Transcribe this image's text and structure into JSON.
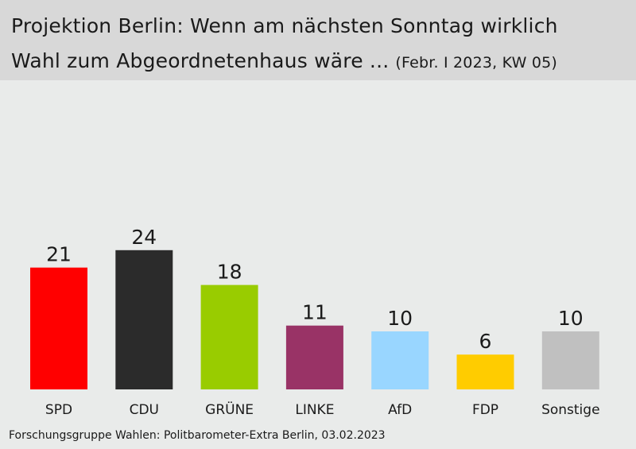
{
  "header": {
    "title_line1": "Projektion Berlin: Wenn am nächsten Sonntag wirklich",
    "title_line2": "Wahl zum Abgeordnetenhaus wäre ...",
    "subtitle": "(Febr. I 2023, KW 05)"
  },
  "source": "Forschungsgruppe Wahlen: Politbarometer-Extra Berlin, 03.02.2023",
  "chart_data": {
    "type": "bar",
    "title": "Projektion Berlin: Wenn am nächsten Sonntag wirklich Wahl zum Abgeordnetenhaus wäre ...",
    "subtitle": "(Febr. I 2023, KW 05)",
    "categories": [
      "SPD",
      "CDU",
      "GRÜNE",
      "LINKE",
      "AfD",
      "FDP",
      "Sonstige"
    ],
    "values": [
      21,
      24,
      18,
      11,
      10,
      6,
      10
    ],
    "colors": [
      "#ff0000",
      "#2b2b2b",
      "#99cc00",
      "#993366",
      "#99d6ff",
      "#ffcc00",
      "#c0c0c0"
    ],
    "xlabel": "",
    "ylabel": "",
    "grid": false,
    "legend": "none"
  }
}
